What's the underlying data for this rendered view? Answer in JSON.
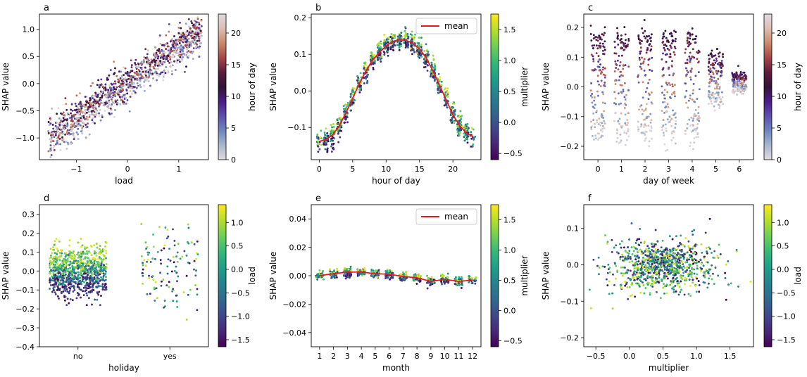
{
  "colormaps": {
    "viridis": [
      "#440154",
      "#482878",
      "#3e4989",
      "#31688e",
      "#26828e",
      "#1f9e89",
      "#35b779",
      "#6ece58",
      "#b5de2b",
      "#fde725"
    ],
    "twilight": [
      "#e2d9e2",
      "#a6b7cc",
      "#6f86bc",
      "#5d4fac",
      "#4c1c84",
      "#2f1436",
      "#5c1c3c",
      "#a34847",
      "#c88a6b",
      "#dcbdb2",
      "#e2d9e2"
    ]
  },
  "styles": {
    "mean_color": "#e41a1c"
  },
  "chart_data": [
    {
      "panel": "a",
      "type": "scatter",
      "xlabel": "load",
      "ylabel": "SHAP value",
      "xlim": [
        -1.72,
        1.58
      ],
      "ylim": [
        -1.4,
        1.28
      ],
      "xticks": [
        -1,
        0,
        1
      ],
      "xtick_labels": [
        "−1",
        "0",
        "1"
      ],
      "yticks": [
        -1.0,
        -0.5,
        0.0,
        0.5,
        1.0
      ],
      "ytick_labels": [
        "−1.0",
        "−0.5",
        "0.0",
        "0.5",
        "1.0"
      ],
      "gen": {
        "kind": "linear",
        "n": 1200,
        "seed": 11,
        "xrange": [
          -1.55,
          1.45
        ],
        "slope": 0.66,
        "intercept": 0.02,
        "noise": 0.16
      },
      "colorbar": {
        "label": "hour of day",
        "cmap": "twilight",
        "min": 0,
        "max": 23,
        "ticks": [
          0,
          5,
          10,
          15,
          20
        ],
        "tick_labels": [
          "0",
          "5",
          "10",
          "15",
          "20"
        ]
      }
    },
    {
      "panel": "b",
      "type": "scatter",
      "xlabel": "hour of day",
      "ylabel": "SHAP value",
      "xlim": [
        -1.2,
        24.2
      ],
      "ylim": [
        -0.188,
        0.21
      ],
      "xticks": [
        0,
        5,
        10,
        15,
        20
      ],
      "xtick_labels": [
        "0",
        "5",
        "10",
        "15",
        "20"
      ],
      "yticks": [
        -0.1,
        0.0,
        0.1,
        0.2
      ],
      "ytick_labels": [
        "−0.1",
        "0.0",
        "0.1",
        "0.2"
      ],
      "gen": {
        "kind": "curve",
        "n": 1000,
        "seed": 22,
        "noise": 0.012,
        "jitter": 0.35
      },
      "mean_line": {
        "label": "mean",
        "x": [
          0,
          1,
          2,
          3,
          4,
          5,
          6,
          7,
          8,
          9,
          10,
          11,
          12,
          13,
          14,
          15,
          16,
          17,
          18,
          19,
          20,
          21,
          22,
          23
        ],
        "y": [
          -0.138,
          -0.133,
          -0.12,
          -0.095,
          -0.06,
          -0.02,
          0.02,
          0.055,
          0.085,
          0.105,
          0.123,
          0.135,
          0.14,
          0.138,
          0.13,
          0.115,
          0.09,
          0.055,
          0.015,
          -0.025,
          -0.065,
          -0.095,
          -0.115,
          -0.125
        ]
      },
      "colorbar": {
        "label": "multiplier",
        "cmap": "viridis",
        "min": -0.6,
        "max": 1.75,
        "ticks": [
          -0.5,
          0.0,
          0.5,
          1.0,
          1.5
        ],
        "tick_labels": [
          "−0.5",
          "0.0",
          "0.5",
          "1.0",
          "1.5"
        ]
      }
    },
    {
      "panel": "c",
      "type": "scatter",
      "xlabel": "day of week",
      "ylabel": "SHAP value",
      "xlim": [
        -0.6,
        6.6
      ],
      "ylim": [
        -0.245,
        0.245
      ],
      "xticks": [
        0,
        1,
        2,
        3,
        4,
        5,
        6
      ],
      "xtick_labels": [
        "0",
        "1",
        "2",
        "3",
        "4",
        "5",
        "6"
      ],
      "yticks": [
        -0.2,
        -0.1,
        0.0,
        0.1,
        0.2
      ],
      "ytick_labels": [
        "−0.2",
        "−0.1",
        "0.0",
        "0.1",
        "0.2"
      ],
      "gen": {
        "kind": "days",
        "n": 900,
        "seed": 33
      },
      "colorbar": {
        "label": "hour of day",
        "cmap": "twilight",
        "min": 0,
        "max": 23,
        "ticks": [
          0,
          5,
          10,
          15,
          20
        ],
        "tick_labels": [
          "0",
          "5",
          "10",
          "15",
          "20"
        ]
      }
    },
    {
      "panel": "d",
      "type": "scatter",
      "xlabel": "holiday",
      "ylabel": "SHAP value",
      "xlim": [
        -0.42,
        1.42
      ],
      "ylim": [
        -0.4,
        0.35
      ],
      "xticks": [
        0,
        1
      ],
      "xtick_labels": [
        "no",
        "yes"
      ],
      "yticks": [
        -0.4,
        -0.3,
        -0.2,
        -0.1,
        0.0,
        0.1,
        0.2,
        0.3
      ],
      "ytick_labels": [
        "−0.4",
        "−0.3",
        "−0.2",
        "−0.1",
        "0.0",
        "0.1",
        "0.2",
        "0.3"
      ],
      "gen": {
        "kind": "holiday",
        "n": 1000,
        "seed": 44
      },
      "colorbar": {
        "label": "load",
        "cmap": "viridis",
        "min": -1.65,
        "max": 1.38,
        "ticks": [
          -1.5,
          -1.0,
          -0.5,
          0.0,
          0.5,
          1.0
        ],
        "tick_labels": [
          "−1.5",
          "−1.0",
          "−0.5",
          "0.0",
          "0.5",
          "1.0"
        ]
      }
    },
    {
      "panel": "e",
      "type": "scatter",
      "xlabel": "month",
      "ylabel": "SHAP value",
      "xlim": [
        0.4,
        12.6
      ],
      "ylim": [
        -0.05,
        0.05
      ],
      "xticks": [
        1,
        2,
        3,
        4,
        5,
        6,
        7,
        8,
        9,
        10,
        11,
        12
      ],
      "xtick_labels": [
        "1",
        "2",
        "3",
        "4",
        "5",
        "6",
        "7",
        "8",
        "9",
        "10",
        "11",
        "12"
      ],
      "yticks": [
        -0.04,
        -0.02,
        0.0,
        0.02,
        0.04
      ],
      "ytick_labels": [
        "−0.04",
        "−0.02",
        "0.00",
        "0.02",
        "0.04"
      ],
      "gen": {
        "kind": "curve",
        "n": 700,
        "seed": 55,
        "noise": 0.0013,
        "jitter": 0.28
      },
      "mean_line": {
        "label": "mean",
        "x": [
          1,
          2,
          3,
          4,
          5,
          6,
          7,
          8,
          9,
          10,
          11,
          12
        ],
        "y": [
          0.0,
          0.0015,
          0.0025,
          0.0025,
          0.0015,
          0.001,
          -0.0005,
          -0.0015,
          -0.004,
          -0.0025,
          -0.004,
          -0.003
        ]
      },
      "colorbar": {
        "label": "multiplier",
        "cmap": "viridis",
        "min": -0.6,
        "max": 1.75,
        "ticks": [
          -0.5,
          0.0,
          0.5,
          1.0,
          1.5
        ],
        "tick_labels": [
          "−0.5",
          "0.0",
          "0.5",
          "1.0",
          "1.5"
        ]
      }
    },
    {
      "panel": "f",
      "type": "scatter",
      "xlabel": "multiplier",
      "ylabel": "SHAP value",
      "xlim": [
        -0.68,
        1.85
      ],
      "ylim": [
        -0.225,
        0.165
      ],
      "xticks": [
        -0.5,
        0.0,
        0.5,
        1.0,
        1.5
      ],
      "xtick_labels": [
        "−0.5",
        "0.0",
        "0.5",
        "1.0",
        "1.5"
      ],
      "yticks": [
        -0.2,
        -0.1,
        0.0,
        0.1
      ],
      "ytick_labels": [
        "−0.2",
        "−0.1",
        "0.0",
        "0.1"
      ],
      "gen": {
        "kind": "cloud",
        "n": 900,
        "seed": 66
      },
      "colorbar": {
        "label": "load",
        "cmap": "viridis",
        "min": -1.65,
        "max": 1.38,
        "ticks": [
          -1.5,
          -1.0,
          -0.5,
          0.0,
          0.5,
          1.0
        ],
        "tick_labels": [
          "−1.5",
          "−1.0",
          "−0.5",
          "0.0",
          "0.5",
          "1.0"
        ]
      }
    }
  ]
}
